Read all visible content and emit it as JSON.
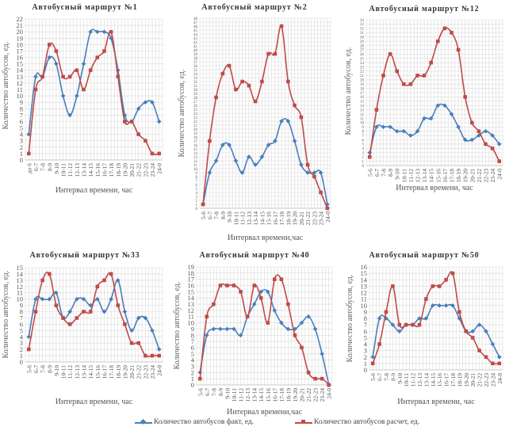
{
  "colors": {
    "fact": "#4a7ebb",
    "calc": "#be4b48",
    "grid": "#d9d9d9"
  },
  "legend": {
    "fact_label": "Количество автобусов  факт, ед.",
    "calc_label": "Количество автобусов  расчет, ед."
  },
  "chart_data": [
    {
      "type": "line",
      "title": "Автобусный маршрут  №1",
      "xlabel": "Интервал времени, час",
      "ylabel": "Количество автобусов, ед.",
      "ylim": [
        0,
        22
      ],
      "ystep": 1,
      "categories": [
        "до 6",
        "6-7",
        "7-8",
        "8-9",
        "9-10",
        "10-11",
        "11-12",
        "12-13",
        "13-14",
        "14-15",
        "15-16",
        "16-17",
        "17-18",
        "18-19",
        "19-20",
        "20-21",
        "21-22",
        "22-23",
        "23-24",
        "24-0"
      ],
      "series": [
        {
          "name": "Количество автобусов  факт, ед.",
          "values": [
            4,
            13,
            13,
            16,
            15,
            10,
            7,
            10,
            15,
            20,
            20,
            20,
            19,
            14,
            7,
            6,
            8,
            9,
            9,
            6
          ]
        },
        {
          "name": "Количество автобусов  расчет, ед.",
          "values": [
            1,
            11,
            13,
            18,
            17,
            13,
            13,
            14,
            11,
            14,
            16,
            17,
            20,
            13,
            6,
            6,
            4,
            3,
            1,
            1
          ]
        }
      ]
    },
    {
      "type": "line",
      "title": "Автобусный маршрут  №2",
      "xlabel": "Интервал времени,час",
      "ylabel": "Количество автобусов, ед.",
      "ylim": [
        0,
        48
      ],
      "ystep": 1,
      "categories": [
        "5-6",
        "6-7",
        "7-8",
        "8-9",
        "9-10",
        "10-11",
        "11-12",
        "12-13",
        "13-14",
        "14-15",
        "15-16",
        "16-17",
        "17-18",
        "18-19",
        "19-20",
        "20-21",
        "21-22",
        "22-23",
        "23-24",
        "24-0"
      ],
      "series": [
        {
          "name": "Количество автобусов  факт, ед.",
          "values": [
            1,
            9,
            12,
            16,
            16,
            12,
            9,
            13,
            11,
            13,
            16,
            17,
            22,
            22,
            17,
            11,
            9,
            9,
            9,
            1
          ]
        },
        {
          "name": "Количество автобусов  расчет, ед.",
          "values": [
            1,
            17,
            28,
            34,
            36,
            30,
            32,
            31,
            27,
            32,
            39,
            39,
            46,
            32,
            26,
            23,
            11,
            8,
            4,
            0
          ]
        }
      ]
    },
    {
      "type": "line",
      "title": "Автобусный маршрут  №12",
      "xlabel": "Интервал времени, час",
      "ylabel": "Количество автобусов, ед.",
      "ylim": [
        0,
        34
      ],
      "ystep": 1,
      "categories": [
        "5-6",
        "6-7",
        "7-8",
        "8-9",
        "9-10",
        "10-11",
        "11-12",
        "12-13",
        "13-14",
        "14-15",
        "15-16",
        "16-17",
        "17-18",
        "18-19",
        "19-20",
        "20-21",
        "21-22",
        "22-23",
        "23-24",
        "24-0"
      ],
      "series": [
        {
          "name": "Количество автобусов  факт, ед.",
          "values": [
            3,
            9,
            9,
            9,
            8,
            8,
            7,
            8,
            11,
            11,
            14,
            14,
            12,
            9,
            6,
            6,
            7,
            8,
            7,
            5
          ]
        },
        {
          "name": "Количество автобусов  расчет, ед.",
          "values": [
            2,
            13,
            21,
            26,
            22,
            19,
            19,
            21,
            21,
            24,
            29,
            32,
            31,
            27,
            16,
            10,
            8,
            5,
            4,
            1
          ]
        }
      ]
    },
    {
      "type": "line",
      "title": "Автобусный маршрут  №33",
      "xlabel": "Интервал времени, час",
      "ylabel": "Количество автобусов, ед.",
      "ylim": [
        0,
        15
      ],
      "ystep": 1,
      "categories": [
        "5-6",
        "6-7",
        "7-8",
        "8-9",
        "9-10",
        "10-11",
        "11-12",
        "12-13",
        "13-14",
        "14-15",
        "15-16",
        "16-17",
        "17-18",
        "18-19",
        "19-20",
        "20-21",
        "21-22",
        "22-23",
        "23-24",
        "24-0"
      ],
      "series": [
        {
          "name": "Количество автобусов  факт, ед.",
          "values": [
            4,
            10,
            10,
            10,
            11,
            7,
            8,
            10,
            10,
            9,
            10,
            8,
            10,
            13,
            8,
            5,
            7,
            7,
            5,
            2
          ]
        },
        {
          "name": "Количество автобусов  расчет, ед.",
          "values": [
            2,
            8,
            13,
            14,
            9,
            7,
            6,
            7,
            8,
            8,
            12,
            13,
            14,
            9,
            6,
            3,
            3,
            1,
            1,
            1
          ]
        }
      ]
    },
    {
      "type": "line",
      "title": "Автобусный маршрут  №40",
      "xlabel": "Интервал времени,час",
      "ylabel": "Количество автобусов, ед.",
      "ylim": [
        0,
        19
      ],
      "ystep": 1,
      "categories": [
        "5-6",
        "6-7",
        "7-8",
        "8-9",
        "9-10",
        "10-11",
        "11-12",
        "12-13",
        "13-14",
        "14-15",
        "15-16",
        "16-17",
        "17-18",
        "18-19",
        "19-20",
        "20-21",
        "21-22",
        "22-23",
        "23-24",
        "24-0"
      ],
      "series": [
        {
          "name": "Количество автобусов  факт, ед.",
          "values": [
            2,
            8,
            9,
            9,
            9,
            9,
            8,
            11,
            13,
            15,
            15,
            12,
            10,
            9,
            9,
            10,
            11,
            9,
            5,
            0
          ]
        },
        {
          "name": "Количество автобусов  расчет, ед.",
          "values": [
            1,
            11,
            13,
            16,
            16,
            16,
            15,
            11,
            16,
            14,
            10,
            17,
            17,
            13,
            8,
            6,
            2,
            1,
            1,
            0
          ]
        }
      ]
    },
    {
      "type": "line",
      "title": "Автобусный маршрут  №50",
      "xlabel": "Интервал времени, час",
      "ylabel": "Количество автобусов, ед.",
      "ylim": [
        0,
        16
      ],
      "ystep": 1,
      "categories": [
        "5-6",
        "6-7",
        "7-8",
        "8-9",
        "9-10",
        "10-11",
        "11-12",
        "12-13",
        "13-14",
        "14-15",
        "15-16",
        "16-17",
        "17-18",
        "18-19",
        "19-20",
        "20-21",
        "21-22",
        "22-23",
        "23-24",
        "24-0"
      ],
      "series": [
        {
          "name": "Количество автобусов  факт, ед.",
          "values": [
            2,
            8,
            8,
            7,
            6,
            7,
            7,
            8,
            8,
            10,
            10,
            10,
            10,
            8,
            6,
            6,
            7,
            6,
            4,
            2
          ]
        },
        {
          "name": "Количество автобусов  расчет, ед.",
          "values": [
            1,
            4,
            9,
            13,
            7,
            7,
            7,
            7,
            11,
            13,
            13,
            14,
            15,
            9,
            6,
            5,
            3,
            2,
            1,
            1
          ]
        }
      ]
    }
  ]
}
